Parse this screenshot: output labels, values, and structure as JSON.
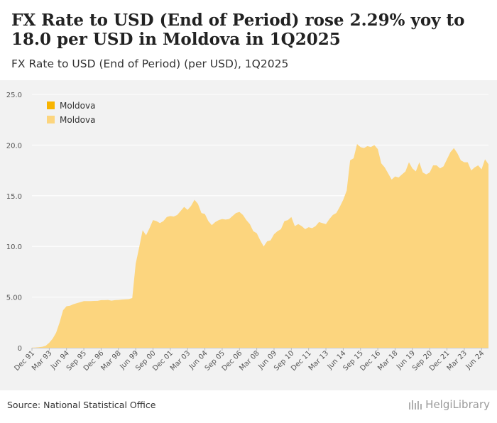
{
  "title": "FX Rate to USD (End of Period) rose 2.29% yoy to 18.0 per USD in Moldova in 1Q2025",
  "subtitle": "FX Rate to USD (End of Period) (per USD), 1Q2025",
  "source": "Source: National Statistical Office",
  "brand": "HelgiLibrary",
  "colors": {
    "area": "#fcd57e",
    "legend_dark": "#f8b400",
    "legend_light": "#fcd57e",
    "grid": "#ffffff",
    "plot_bg": "#f2f2f2"
  },
  "chart_data": {
    "type": "area",
    "title": "FX Rate to USD (End of Period) (per USD), 1Q2025",
    "xlabel": "",
    "ylabel": "",
    "ylim": [
      0,
      25
    ],
    "yticks": [
      0,
      5,
      10,
      15,
      20,
      25
    ],
    "ytick_labels": [
      "0",
      "5.00",
      "10.0",
      "15.0",
      "20.0",
      "25.0"
    ],
    "xtick_labels": [
      "Dec 91",
      "Mar 93",
      "Jun 94",
      "Sep 95",
      "Dec 96",
      "Mar 98",
      "Jun 99",
      "Sep 00",
      "Dec 01",
      "Mar 03",
      "Jun 04",
      "Sep 05",
      "Dec 06",
      "Mar 08",
      "Jun 09",
      "Sep 10",
      "Dec 11",
      "Mar 13",
      "Jun 14",
      "Sep 15",
      "Dec 16",
      "Mar 18",
      "Jun 19",
      "Sep 20",
      "Dec 21",
      "Mar 23",
      "Jun 24"
    ],
    "legend": [
      "Moldova",
      "Moldova"
    ],
    "series": [
      {
        "name": "Moldova",
        "x_start": "Dec 91",
        "frequency": "quarterly",
        "values": [
          0.02,
          0.03,
          0.05,
          0.1,
          0.2,
          0.5,
          0.9,
          1.5,
          2.5,
          3.7,
          4.1,
          4.15,
          4.3,
          4.4,
          4.5,
          4.6,
          4.6,
          4.6,
          4.62,
          4.63,
          4.7,
          4.7,
          4.72,
          4.65,
          4.7,
          4.72,
          4.75,
          4.78,
          4.8,
          4.9,
          8.3,
          9.9,
          11.6,
          11.1,
          11.8,
          12.6,
          12.5,
          12.3,
          12.5,
          12.9,
          13.0,
          12.95,
          13.1,
          13.5,
          13.9,
          13.6,
          14.0,
          14.6,
          14.2,
          13.3,
          13.2,
          12.5,
          12.1,
          12.4,
          12.6,
          12.7,
          12.65,
          12.7,
          13.0,
          13.3,
          13.4,
          13.1,
          12.6,
          12.2,
          11.5,
          11.3,
          10.6,
          10.0,
          10.5,
          10.6,
          11.2,
          11.5,
          11.7,
          12.5,
          12.6,
          12.9,
          12.0,
          12.2,
          12.0,
          11.7,
          11.9,
          11.8,
          12.0,
          12.4,
          12.3,
          12.2,
          12.7,
          13.1,
          13.3,
          13.9,
          14.6,
          15.5,
          18.5,
          18.7,
          20.1,
          19.8,
          19.7,
          19.9,
          19.8,
          20.0,
          19.6,
          18.2,
          17.8,
          17.2,
          16.6,
          16.9,
          16.8,
          17.1,
          17.4,
          18.3,
          17.7,
          17.4,
          18.3,
          17.3,
          17.1,
          17.3,
          18.0,
          18.0,
          17.7,
          17.9,
          18.6,
          19.3,
          19.7,
          19.2,
          18.5,
          18.3,
          18.3,
          17.5,
          17.8,
          18.0,
          17.6,
          18.6,
          18.1
        ]
      }
    ]
  }
}
